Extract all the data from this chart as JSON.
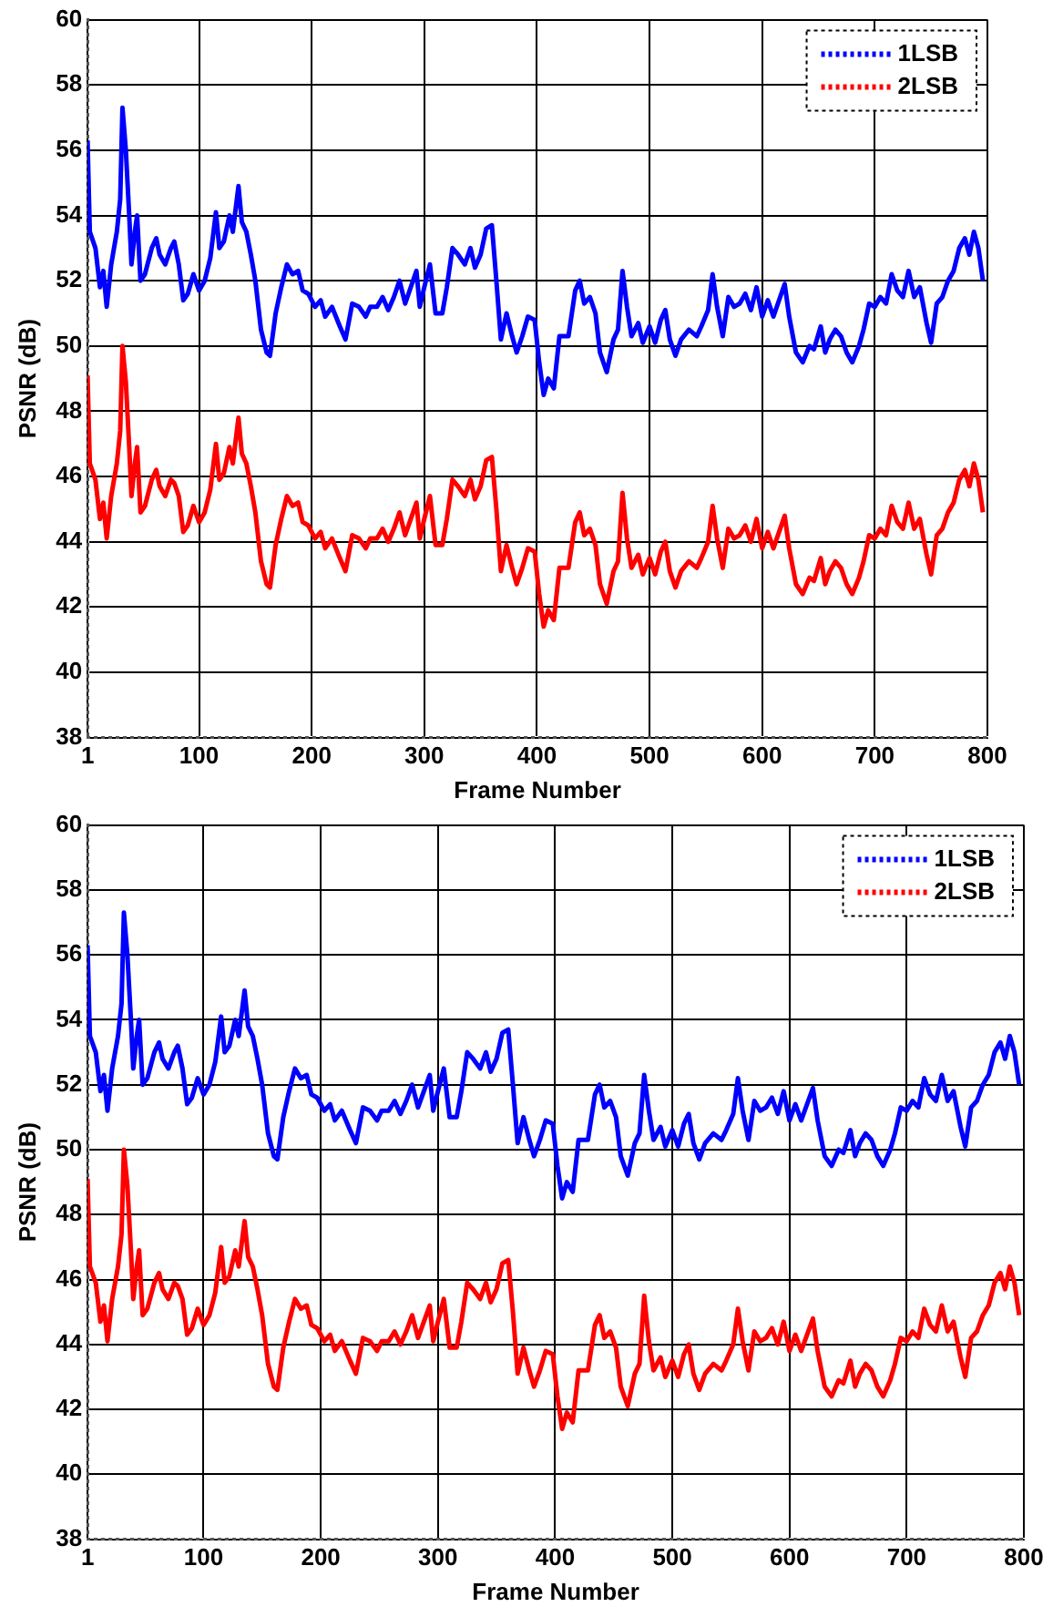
{
  "chart_data": [
    {
      "type": "line",
      "xlabel": "Frame Number",
      "ylabel": "PSNR (dB)",
      "xlim": [
        1,
        800
      ],
      "xticks": [
        1,
        100,
        200,
        300,
        400,
        500,
        600,
        700,
        800
      ],
      "ylim": [
        38,
        60
      ],
      "yticks": [
        38,
        40,
        42,
        44,
        46,
        48,
        50,
        52,
        54,
        56,
        58,
        60
      ],
      "grid": true,
      "legend": "top right",
      "line_style": "solid",
      "x": [
        1,
        3,
        8,
        12,
        15,
        18,
        22,
        27,
        30,
        32,
        35,
        38,
        40,
        43,
        45,
        48,
        52,
        58,
        62,
        65,
        70,
        75,
        78,
        82,
        86,
        90,
        95,
        100,
        105,
        110,
        115,
        118,
        122,
        127,
        130,
        135,
        138,
        142,
        146,
        150,
        155,
        160,
        163,
        168,
        173,
        178,
        183,
        188,
        192,
        197,
        203,
        208,
        212,
        218,
        225,
        230,
        236,
        242,
        248,
        252,
        258,
        263,
        268,
        273,
        278,
        283,
        288,
        293,
        296,
        300,
        305,
        310,
        316,
        320,
        325,
        330,
        336,
        341,
        345,
        350,
        355,
        360,
        364,
        368,
        373,
        378,
        382,
        387,
        392,
        398,
        402,
        406,
        410,
        415,
        420,
        428,
        434,
        438,
        442,
        447,
        452,
        456,
        462,
        468,
        472,
        476,
        480,
        484,
        490,
        494,
        500,
        505,
        510,
        514,
        518,
        523,
        528,
        535,
        542,
        546,
        552,
        556,
        560,
        565,
        570,
        575,
        580,
        585,
        590,
        595,
        600,
        605,
        610,
        616,
        620,
        624,
        630,
        636,
        642,
        646,
        652,
        656,
        660,
        665,
        670,
        675,
        680,
        686,
        690,
        695,
        700,
        705,
        710,
        715,
        720,
        725,
        730,
        735,
        740,
        746,
        750,
        755,
        760,
        765,
        770,
        775,
        780,
        784,
        788,
        792,
        796
      ],
      "series": [
        {
          "name": "1LSB",
          "color": "#0000ff",
          "values": [
            56.3,
            53.5,
            53,
            51.8,
            52.3,
            51.2,
            52.5,
            53.5,
            54.5,
            57.3,
            56,
            54,
            52.5,
            53.5,
            54,
            52,
            52.2,
            53,
            53.3,
            52.8,
            52.5,
            53,
            53.2,
            52.5,
            51.4,
            51.6,
            52.2,
            51.7,
            52,
            52.7,
            54.1,
            53,
            53.2,
            54,
            53.5,
            54.9,
            53.8,
            53.5,
            52.8,
            52,
            50.5,
            49.8,
            49.7,
            51,
            51.8,
            52.5,
            52.2,
            52.3,
            51.7,
            51.6,
            51.2,
            51.4,
            50.9,
            51.2,
            50.6,
            50.2,
            51.3,
            51.2,
            50.9,
            51.2,
            51.2,
            51.5,
            51.1,
            51.5,
            52,
            51.3,
            51.8,
            52.3,
            51.2,
            51.8,
            52.5,
            51,
            51,
            51.8,
            53,
            52.8,
            52.5,
            53,
            52.4,
            52.8,
            53.6,
            53.7,
            52,
            50.2,
            51,
            50.3,
            49.8,
            50.3,
            50.9,
            50.8,
            49.5,
            48.5,
            49,
            48.7,
            50.3,
            50.3,
            51.7,
            52,
            51.3,
            51.5,
            51,
            49.8,
            49.2,
            50.2,
            50.5,
            52.3,
            51.2,
            50.3,
            50.7,
            50.1,
            50.6,
            50.1,
            50.8,
            51.1,
            50.2,
            49.7,
            50.2,
            50.5,
            50.3,
            50.6,
            51.1,
            52.2,
            51.2,
            50.3,
            51.5,
            51.2,
            51.3,
            51.6,
            51.1,
            51.8,
            50.9,
            51.4,
            50.9,
            51.5,
            51.9,
            50.9,
            49.8,
            49.5,
            50,
            49.9,
            50.6,
            49.8,
            50.2,
            50.5,
            50.3,
            49.8,
            49.5,
            50,
            50.5,
            51.3,
            51.2,
            51.5,
            51.3,
            52.2,
            51.7,
            51.5,
            52.3,
            51.5,
            51.8,
            50.7,
            50.1,
            51.3,
            51.5,
            52,
            52.3,
            53,
            53.3,
            52.8,
            53.5,
            53,
            52
          ]
        },
        {
          "name": "2LSB",
          "color": "#ff0000",
          "values": [
            49.1,
            46.4,
            45.9,
            44.7,
            45.2,
            44.1,
            45.4,
            46.4,
            47.4,
            50,
            48.9,
            46.9,
            45.4,
            46.4,
            46.9,
            44.9,
            45.1,
            45.9,
            46.2,
            45.7,
            45.4,
            45.9,
            45.8,
            45.4,
            44.3,
            44.5,
            45.1,
            44.6,
            44.9,
            45.6,
            47,
            45.9,
            46.1,
            46.9,
            46.4,
            47.8,
            46.7,
            46.4,
            45.7,
            44.9,
            43.4,
            42.7,
            42.6,
            43.9,
            44.7,
            45.4,
            45.1,
            45.2,
            44.6,
            44.5,
            44.1,
            44.3,
            43.8,
            44.1,
            43.5,
            43.1,
            44.2,
            44.1,
            43.8,
            44.1,
            44.1,
            44.4,
            44,
            44.4,
            44.9,
            44.2,
            44.7,
            45.2,
            44.1,
            44.7,
            45.4,
            43.9,
            43.9,
            44.7,
            45.9,
            45.7,
            45.4,
            45.9,
            45.3,
            45.7,
            46.5,
            46.6,
            45,
            43.1,
            43.9,
            43.2,
            42.7,
            43.2,
            43.8,
            43.7,
            42.4,
            41.4,
            41.9,
            41.6,
            43.2,
            43.2,
            44.6,
            44.9,
            44.2,
            44.4,
            43.9,
            42.7,
            42.1,
            43.1,
            43.4,
            45.5,
            44.1,
            43.2,
            43.6,
            43,
            43.5,
            43,
            43.7,
            44,
            43.1,
            42.6,
            43.1,
            43.4,
            43.2,
            43.5,
            44,
            45.1,
            44.1,
            43.2,
            44.4,
            44.1,
            44.2,
            44.5,
            44,
            44.7,
            43.8,
            44.3,
            43.8,
            44.4,
            44.8,
            43.8,
            42.7,
            42.4,
            42.9,
            42.8,
            43.5,
            42.7,
            43.1,
            43.4,
            43.2,
            42.7,
            42.4,
            42.9,
            43.4,
            44.2,
            44.1,
            44.4,
            44.2,
            45.1,
            44.6,
            44.4,
            45.2,
            44.4,
            44.7,
            43.6,
            43,
            44.2,
            44.4,
            44.9,
            45.2,
            45.9,
            46.2,
            45.7,
            46.4,
            45.9,
            44.9
          ]
        }
      ]
    },
    {
      "type": "line",
      "xlabel": "Frame Number",
      "ylabel": "PSNR (dB)",
      "xlim": [
        1,
        800
      ],
      "xticks": [
        1,
        100,
        200,
        300,
        400,
        500,
        600,
        700,
        800
      ],
      "ylim": [
        38,
        60
      ],
      "yticks": [
        38,
        40,
        42,
        44,
        46,
        48,
        50,
        52,
        54,
        56,
        58,
        60
      ],
      "grid": true,
      "legend": "top right",
      "line_style": "solid",
      "x": [
        1,
        3,
        8,
        12,
        15,
        18,
        22,
        27,
        30,
        32,
        35,
        38,
        40,
        43,
        45,
        48,
        52,
        58,
        62,
        65,
        70,
        75,
        78,
        82,
        86,
        90,
        95,
        100,
        105,
        110,
        115,
        118,
        122,
        127,
        130,
        135,
        138,
        142,
        146,
        150,
        155,
        160,
        163,
        168,
        173,
        178,
        183,
        188,
        192,
        197,
        203,
        208,
        212,
        218,
        225,
        230,
        236,
        242,
        248,
        252,
        258,
        263,
        268,
        273,
        278,
        283,
        288,
        293,
        296,
        300,
        305,
        310,
        316,
        320,
        325,
        330,
        336,
        341,
        345,
        350,
        355,
        360,
        364,
        368,
        373,
        378,
        382,
        387,
        392,
        398,
        402,
        406,
        410,
        415,
        420,
        428,
        434,
        438,
        442,
        447,
        452,
        456,
        462,
        468,
        472,
        476,
        480,
        484,
        490,
        494,
        500,
        505,
        510,
        514,
        518,
        523,
        528,
        535,
        542,
        546,
        552,
        556,
        560,
        565,
        570,
        575,
        580,
        585,
        590,
        595,
        600,
        605,
        610,
        616,
        620,
        624,
        630,
        636,
        642,
        646,
        652,
        656,
        660,
        665,
        670,
        675,
        680,
        686,
        690,
        695,
        700,
        705,
        710,
        715,
        720,
        725,
        730,
        735,
        740,
        746,
        750,
        755,
        760,
        765,
        770,
        775,
        780,
        784,
        788,
        792,
        796
      ],
      "series": [
        {
          "name": "1LSB",
          "color": "#0000ff",
          "values": [
            56.3,
            53.5,
            53,
            51.8,
            52.3,
            51.2,
            52.5,
            53.5,
            54.5,
            57.3,
            56,
            54,
            52.5,
            53.5,
            54,
            52,
            52.2,
            53,
            53.3,
            52.8,
            52.5,
            53,
            53.2,
            52.5,
            51.4,
            51.6,
            52.2,
            51.7,
            52,
            52.7,
            54.1,
            53,
            53.2,
            54,
            53.5,
            54.9,
            53.8,
            53.5,
            52.8,
            52,
            50.5,
            49.8,
            49.7,
            51,
            51.8,
            52.5,
            52.2,
            52.3,
            51.7,
            51.6,
            51.2,
            51.4,
            50.9,
            51.2,
            50.6,
            50.2,
            51.3,
            51.2,
            50.9,
            51.2,
            51.2,
            51.5,
            51.1,
            51.5,
            52,
            51.3,
            51.8,
            52.3,
            51.2,
            51.8,
            52.5,
            51,
            51,
            51.8,
            53,
            52.8,
            52.5,
            53,
            52.4,
            52.8,
            53.6,
            53.7,
            52,
            50.2,
            51,
            50.3,
            49.8,
            50.3,
            50.9,
            50.8,
            49.5,
            48.5,
            49,
            48.7,
            50.3,
            50.3,
            51.7,
            52,
            51.3,
            51.5,
            51,
            49.8,
            49.2,
            50.2,
            50.5,
            52.3,
            51.2,
            50.3,
            50.7,
            50.1,
            50.6,
            50.1,
            50.8,
            51.1,
            50.2,
            49.7,
            50.2,
            50.5,
            50.3,
            50.6,
            51.1,
            52.2,
            51.2,
            50.3,
            51.5,
            51.2,
            51.3,
            51.6,
            51.1,
            51.8,
            50.9,
            51.4,
            50.9,
            51.5,
            51.9,
            50.9,
            49.8,
            49.5,
            50,
            49.9,
            50.6,
            49.8,
            50.2,
            50.5,
            50.3,
            49.8,
            49.5,
            50,
            50.5,
            51.3,
            51.2,
            51.5,
            51.3,
            52.2,
            51.7,
            51.5,
            52.3,
            51.5,
            51.8,
            50.7,
            50.1,
            51.3,
            51.5,
            52,
            52.3,
            53,
            53.3,
            52.8,
            53.5,
            53,
            52
          ]
        },
        {
          "name": "2LSB",
          "color": "#ff0000",
          "values": [
            49.1,
            46.4,
            45.9,
            44.7,
            45.2,
            44.1,
            45.4,
            46.4,
            47.4,
            50,
            48.9,
            46.9,
            45.4,
            46.4,
            46.9,
            44.9,
            45.1,
            45.9,
            46.2,
            45.7,
            45.4,
            45.9,
            45.8,
            45.4,
            44.3,
            44.5,
            45.1,
            44.6,
            44.9,
            45.6,
            47,
            45.9,
            46.1,
            46.9,
            46.4,
            47.8,
            46.7,
            46.4,
            45.7,
            44.9,
            43.4,
            42.7,
            42.6,
            43.9,
            44.7,
            45.4,
            45.1,
            45.2,
            44.6,
            44.5,
            44.1,
            44.3,
            43.8,
            44.1,
            43.5,
            43.1,
            44.2,
            44.1,
            43.8,
            44.1,
            44.1,
            44.4,
            44,
            44.4,
            44.9,
            44.2,
            44.7,
            45.2,
            44.1,
            44.7,
            45.4,
            43.9,
            43.9,
            44.7,
            45.9,
            45.7,
            45.4,
            45.9,
            45.3,
            45.7,
            46.5,
            46.6,
            45,
            43.1,
            43.9,
            43.2,
            42.7,
            43.2,
            43.8,
            43.7,
            42.4,
            41.4,
            41.9,
            41.6,
            43.2,
            43.2,
            44.6,
            44.9,
            44.2,
            44.4,
            43.9,
            42.7,
            42.1,
            43.1,
            43.4,
            45.5,
            44.1,
            43.2,
            43.6,
            43,
            43.5,
            43,
            43.7,
            44,
            43.1,
            42.6,
            43.1,
            43.4,
            43.2,
            43.5,
            44,
            45.1,
            44.1,
            43.2,
            44.4,
            44.1,
            44.2,
            44.5,
            44,
            44.7,
            43.8,
            44.3,
            43.8,
            44.4,
            44.8,
            43.8,
            42.7,
            42.4,
            42.9,
            42.8,
            43.5,
            42.7,
            43.1,
            43.4,
            43.2,
            42.7,
            42.4,
            42.9,
            43.4,
            44.2,
            44.1,
            44.4,
            44.2,
            45.1,
            44.6,
            44.4,
            45.2,
            44.4,
            44.7,
            43.6,
            43,
            44.2,
            44.4,
            44.9,
            45.2,
            45.9,
            46.2,
            45.7,
            46.4,
            45.9,
            44.9
          ]
        }
      ]
    }
  ]
}
